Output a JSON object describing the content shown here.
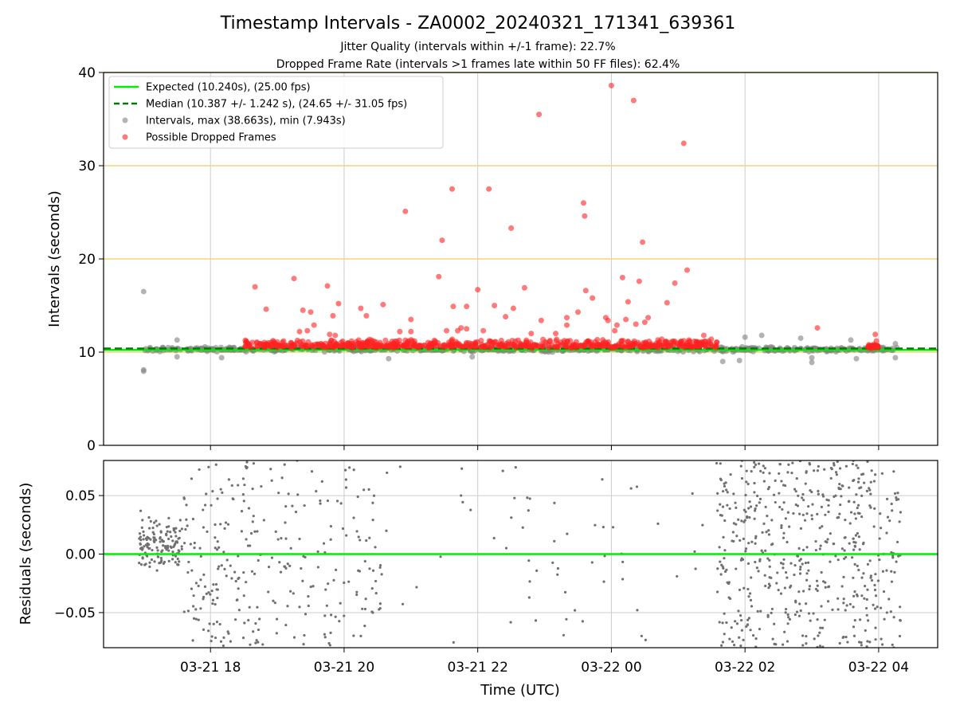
{
  "chart_data": [
    {
      "type": "scatter",
      "title": "Timestamp Intervals - ZA0002_20240321_171341_639361",
      "subtitle_lines": [
        "Jitter Quality (intervals within +/-1 frame): 22.7%",
        "Dropped Frame Rate (intervals >1 frames late within 50 FF files): 62.4%"
      ],
      "ylabel": "Intervals (seconds)",
      "xlabel": "",
      "xlim": [
        "2024-03-21 16:24",
        "2024-03-22 04:53"
      ],
      "ylim": [
        0,
        40
      ],
      "yticks": [
        "0",
        "10",
        "20",
        "30",
        "40"
      ],
      "xticks": [
        "03-21 18",
        "03-21 20",
        "03-21 22",
        "03-22 00",
        "03-22 02",
        "03-22 04"
      ],
      "xtick_times": [
        "2024-03-21 18:00",
        "2024-03-21 20:00",
        "2024-03-21 22:00",
        "2024-03-22 00:00",
        "2024-03-22 02:00",
        "2024-03-22 04:00"
      ],
      "grid": true,
      "legend_position": "upper-left",
      "reference_lines": [
        {
          "label": "Expected (10.240s), (25.00 fps)",
          "y": 10.24,
          "color": "#00ee00",
          "style": "solid"
        },
        {
          "label": "Median (10.387 +/- 1.242 s), (24.65 +/- 31.05 fps)",
          "y": 10.387,
          "color": "#007a00",
          "style": "dashed"
        }
      ],
      "threshold_lines": {
        "y": [
          10.0,
          20.0,
          30.0,
          40.0
        ],
        "color": "#f5d27a"
      },
      "series": [
        {
          "name": "Intervals, max (38.663s), min (7.943s)",
          "color": "#808080",
          "marker": "circle",
          "points": [
            {
              "x": "2024-03-21 17:00",
              "y": 16.5
            },
            {
              "x": "2024-03-21 17:00",
              "y": 8.1
            },
            {
              "x": "2024-03-21 17:00",
              "y": 7.95
            },
            {
              "x": "2024-03-21 17:30",
              "y": 11.3
            },
            {
              "x": "2024-03-21 17:30",
              "y": 9.5
            },
            {
              "x": "2024-03-21 18:10",
              "y": 9.4
            },
            {
              "x": "2024-03-21 20:40",
              "y": 9.3
            },
            {
              "x": "2024-03-21 21:55",
              "y": 9.5
            },
            {
              "x": "2024-03-22 01:40",
              "y": 9.0
            },
            {
              "x": "2024-03-22 01:55",
              "y": 9.1
            },
            {
              "x": "2024-03-22 02:00",
              "y": 11.6
            },
            {
              "x": "2024-03-22 02:15",
              "y": 11.8
            },
            {
              "x": "2024-03-22 02:50",
              "y": 11.5
            },
            {
              "x": "2024-03-22 03:00",
              "y": 9.4
            },
            {
              "x": "2024-03-22 03:00",
              "y": 8.9
            },
            {
              "x": "2024-03-22 03:35",
              "y": 11.3
            },
            {
              "x": "2024-03-22 03:40",
              "y": 9.3
            },
            {
              "x": "2024-03-22 04:15",
              "y": 10.9
            },
            {
              "x": "2024-03-22 04:15",
              "y": 9.4
            }
          ],
          "band": {
            "x_start": "2024-03-21 17:00",
            "x_end": "2024-03-22 04:20",
            "y_center": 10.3,
            "y_spread": 0.35
          }
        },
        {
          "name": "Possible Dropped Frames",
          "color": "#ff2222",
          "marker": "circle",
          "points": [
            {
              "x": "2024-03-21 18:40",
              "y": 17.0
            },
            {
              "x": "2024-03-21 18:50",
              "y": 14.6
            },
            {
              "x": "2024-03-21 19:15",
              "y": 17.9
            },
            {
              "x": "2024-03-21 19:20",
              "y": 12.2
            },
            {
              "x": "2024-03-21 19:23",
              "y": 14.5
            },
            {
              "x": "2024-03-21 19:27",
              "y": 12.3
            },
            {
              "x": "2024-03-21 19:30",
              "y": 14.3
            },
            {
              "x": "2024-03-21 19:33",
              "y": 12.9
            },
            {
              "x": "2024-03-21 19:45",
              "y": 17.1
            },
            {
              "x": "2024-03-21 19:50",
              "y": 13.9
            },
            {
              "x": "2024-03-21 19:55",
              "y": 15.2
            },
            {
              "x": "2024-03-21 19:47",
              "y": 11.9
            },
            {
              "x": "2024-03-21 19:52",
              "y": 11.8
            },
            {
              "x": "2024-03-21 20:15",
              "y": 14.7
            },
            {
              "x": "2024-03-21 20:20",
              "y": 13.9
            },
            {
              "x": "2024-03-21 20:35",
              "y": 15.1
            },
            {
              "x": "2024-03-21 20:50",
              "y": 12.2
            },
            {
              "x": "2024-03-21 20:55",
              "y": 25.1
            },
            {
              "x": "2024-03-21 21:00",
              "y": 13.5
            },
            {
              "x": "2024-03-21 21:00",
              "y": 12.2
            },
            {
              "x": "2024-03-21 21:25",
              "y": 18.1
            },
            {
              "x": "2024-03-21 21:28",
              "y": 22.0
            },
            {
              "x": "2024-03-21 21:32",
              "y": 12.3
            },
            {
              "x": "2024-03-21 21:37",
              "y": 27.5
            },
            {
              "x": "2024-03-21 21:38",
              "y": 14.9
            },
            {
              "x": "2024-03-21 21:42",
              "y": 12.3
            },
            {
              "x": "2024-03-21 21:45",
              "y": 12.6
            },
            {
              "x": "2024-03-21 21:50",
              "y": 14.9
            },
            {
              "x": "2024-03-21 21:50",
              "y": 12.5
            },
            {
              "x": "2024-03-21 22:00",
              "y": 16.7
            },
            {
              "x": "2024-03-21 22:05",
              "y": 12.3
            },
            {
              "x": "2024-03-21 22:10",
              "y": 27.5
            },
            {
              "x": "2024-03-21 22:15",
              "y": 15.0
            },
            {
              "x": "2024-03-21 22:25",
              "y": 13.8
            },
            {
              "x": "2024-03-21 22:30",
              "y": 23.3
            },
            {
              "x": "2024-03-21 22:32",
              "y": 14.7
            },
            {
              "x": "2024-03-21 22:42",
              "y": 16.9
            },
            {
              "x": "2024-03-21 22:48",
              "y": 12.0
            },
            {
              "x": "2024-03-21 22:55",
              "y": 35.5
            },
            {
              "x": "2024-03-21 22:57",
              "y": 13.4
            },
            {
              "x": "2024-03-21 23:10",
              "y": 12.0
            },
            {
              "x": "2024-03-21 23:20",
              "y": 13.7
            },
            {
              "x": "2024-03-21 23:20",
              "y": 12.9
            },
            {
              "x": "2024-03-21 23:30",
              "y": 14.3
            },
            {
              "x": "2024-03-21 23:35",
              "y": 26.0
            },
            {
              "x": "2024-03-21 23:36",
              "y": 24.6
            },
            {
              "x": "2024-03-21 23:37",
              "y": 16.6
            },
            {
              "x": "2024-03-21 23:43",
              "y": 15.8
            },
            {
              "x": "2024-03-21 23:55",
              "y": 13.7
            },
            {
              "x": "2024-03-21 23:57",
              "y": 13.4
            },
            {
              "x": "2024-03-22 00:00",
              "y": 38.6
            },
            {
              "x": "2024-03-22 00:03",
              "y": 12.3
            },
            {
              "x": "2024-03-22 00:05",
              "y": 12.9
            },
            {
              "x": "2024-03-22 00:10",
              "y": 18.0
            },
            {
              "x": "2024-03-22 00:13",
              "y": 13.5
            },
            {
              "x": "2024-03-22 00:15",
              "y": 15.4
            },
            {
              "x": "2024-03-22 00:20",
              "y": 37.0
            },
            {
              "x": "2024-03-22 00:22",
              "y": 13.0
            },
            {
              "x": "2024-03-22 00:25",
              "y": 17.6
            },
            {
              "x": "2024-03-22 00:28",
              "y": 21.8
            },
            {
              "x": "2024-03-22 00:30",
              "y": 13.2
            },
            {
              "x": "2024-03-22 00:33",
              "y": 13.7
            },
            {
              "x": "2024-03-22 00:50",
              "y": 15.3
            },
            {
              "x": "2024-03-22 00:57",
              "y": 17.4
            },
            {
              "x": "2024-03-22 01:05",
              "y": 32.4
            },
            {
              "x": "2024-03-22 01:08",
              "y": 18.8
            },
            {
              "x": "2024-03-22 01:23",
              "y": 11.8
            },
            {
              "x": "2024-03-22 03:05",
              "y": 12.6
            },
            {
              "x": "2024-03-22 03:57",
              "y": 11.9
            },
            {
              "x": "2024-03-22 03:58",
              "y": 11.2
            }
          ],
          "band": {
            "x_start": "2024-03-21 18:30",
            "x_end": "2024-03-22 01:35",
            "y_center": 10.7,
            "y_spread": 0.35
          },
          "cluster": {
            "x_start": "2024-03-22 03:50",
            "x_end": "2024-03-22 04:00",
            "y_center": 10.6,
            "y_spread": 0.3
          }
        }
      ]
    },
    {
      "type": "scatter",
      "title": "",
      "ylabel": "Residuals (seconds)",
      "xlabel": "Time (UTC)",
      "xlim": [
        "2024-03-21 16:24",
        "2024-03-22 04:53"
      ],
      "ylim": [
        -0.08,
        0.08
      ],
      "yticks": [
        "−0.05",
        "0.00",
        "0.05"
      ],
      "ytick_values": [
        -0.05,
        0.0,
        0.05
      ],
      "xticks": [
        "03-21 18",
        "03-21 20",
        "03-21 22",
        "03-22 00",
        "03-22 02",
        "03-22 04"
      ],
      "xtick_times": [
        "2024-03-21 18:00",
        "2024-03-21 20:00",
        "2024-03-21 22:00",
        "2024-03-22 00:00",
        "2024-03-22 02:00",
        "2024-03-22 04:00"
      ],
      "grid": true,
      "reference_line": {
        "y": 0.0,
        "color": "#00ee00"
      },
      "series": [
        {
          "color": "#707070",
          "marker": "small-dot",
          "clusters": [
            {
              "x_start": "2024-03-21 16:55",
              "x_end": "2024-03-21 17:35",
              "y_center": 0.01,
              "y_spread": 0.03,
              "count": 140
            },
            {
              "x_start": "2024-03-21 17:35",
              "x_end": "2024-03-21 18:45",
              "y_center": 0.0,
              "y_spread": 0.08,
              "count": 150
            },
            {
              "x_start": "2024-03-21 18:45",
              "x_end": "2024-03-21 20:35",
              "y_center": 0.0,
              "y_spread": 0.08,
              "count": 130
            },
            {
              "x_start": "2024-03-21 20:35",
              "x_end": "2024-03-22 01:35",
              "y_center": 0.0,
              "y_spread": 0.08,
              "count": 60
            },
            {
              "x_start": "2024-03-22 01:35",
              "x_end": "2024-03-22 03:40",
              "y_center": 0.0,
              "y_spread": 0.08,
              "count": 420
            },
            {
              "x_start": "2024-03-22 03:40",
              "x_end": "2024-03-22 04:20",
              "y_center": 0.0,
              "y_spread": 0.08,
              "count": 120
            }
          ]
        }
      ]
    }
  ]
}
